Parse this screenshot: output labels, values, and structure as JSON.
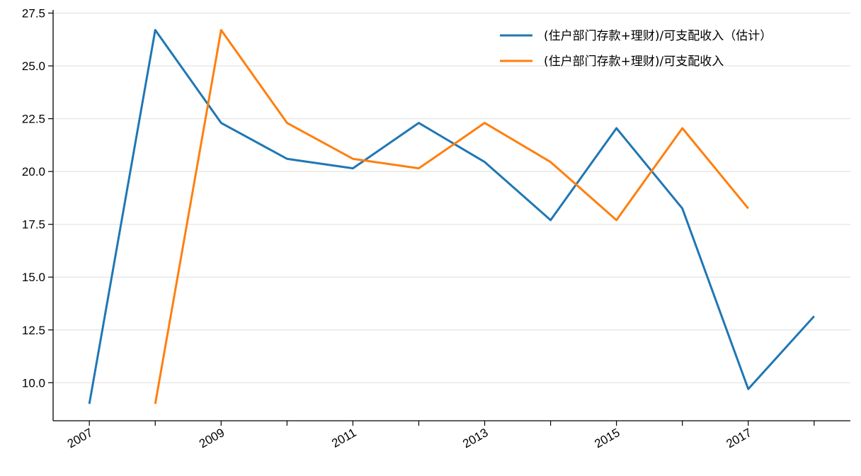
{
  "chart_data": {
    "type": "line",
    "title": "",
    "xlabel": "",
    "ylabel": "",
    "x": [
      2007,
      2008,
      2009,
      2010,
      2011,
      2012,
      2013,
      2014,
      2015,
      2016,
      2017,
      2018
    ],
    "xlim": [
      2006.45,
      2018.55
    ],
    "ylim": [
      8.2,
      27.65
    ],
    "x_tick_labels": [
      "2007",
      "2009",
      "2011",
      "2013",
      "2015",
      "2017"
    ],
    "y_tick_labels": [
      "10.0",
      "12.5",
      "15.0",
      "17.5",
      "20.0",
      "22.5",
      "25.0",
      "27.5"
    ],
    "y_ticks": [
      10.0,
      12.5,
      15.0,
      17.5,
      20.0,
      22.5,
      25.0,
      27.5
    ],
    "grid": "horizontal",
    "legend_position": "top-right",
    "series": [
      {
        "name": "(住户部门存款+理财)/可支配收入（估计）",
        "color": "#1f77b4",
        "values": [
          9.0,
          26.7,
          22.3,
          20.6,
          20.15,
          22.3,
          20.45,
          17.7,
          22.05,
          18.25,
          9.7,
          13.15
        ]
      },
      {
        "name": "(住户部门存款+理财)/可支配收入",
        "color": "#ff7f0e",
        "values": [
          null,
          9.0,
          26.7,
          22.3,
          20.6,
          20.15,
          22.3,
          20.45,
          17.7,
          22.05,
          18.25,
          null
        ]
      }
    ]
  }
}
